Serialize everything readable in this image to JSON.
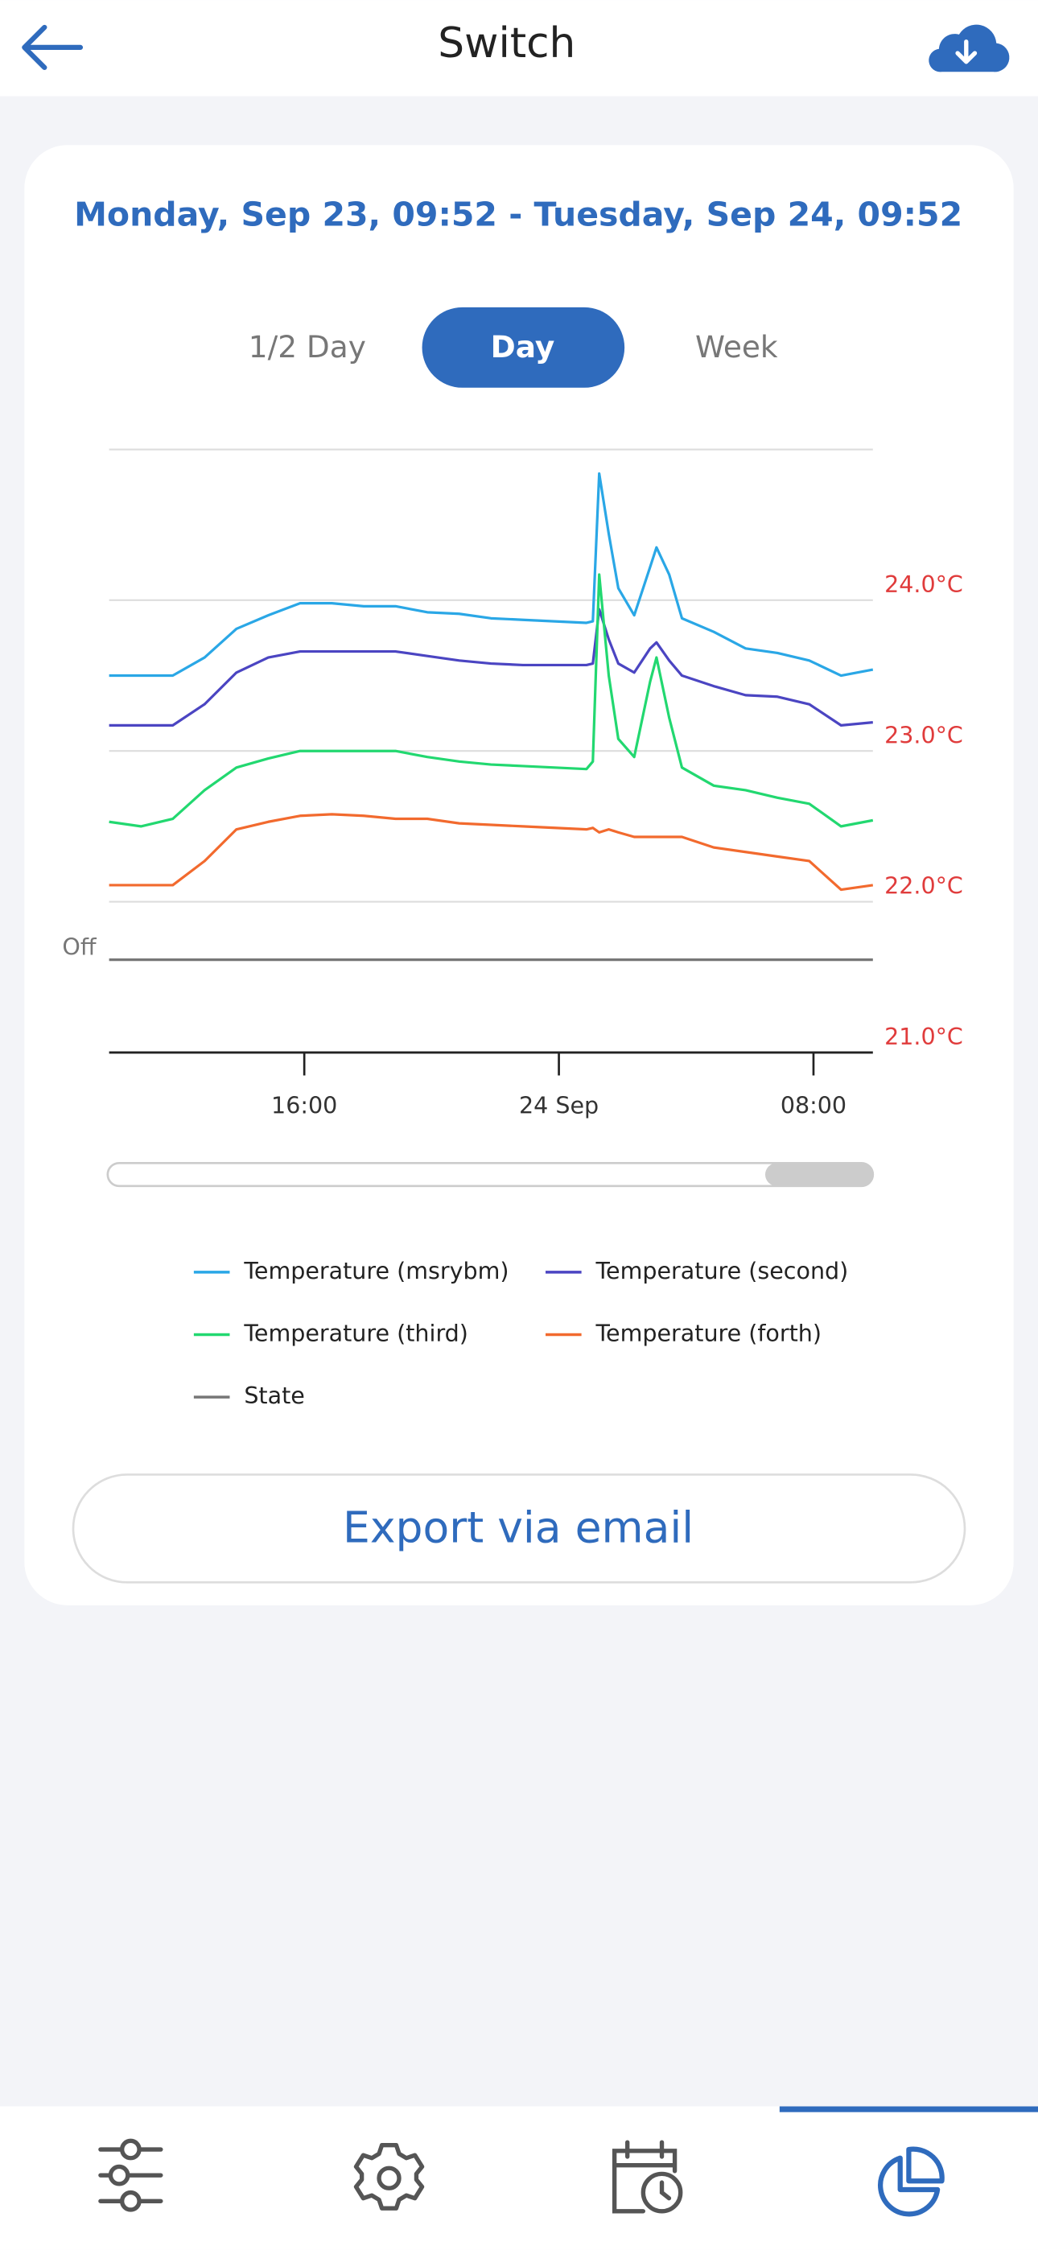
{
  "header": {
    "title": "Switch"
  },
  "range": "Monday, Sep 23, 09:52 - Tuesday, Sep 24, 09:52",
  "tabs": [
    "1/2 Day",
    "Day",
    "Week"
  ],
  "selected_tab": 1,
  "chart_data": {
    "type": "line",
    "x": [
      0,
      1,
      2,
      3,
      4,
      5,
      6,
      7,
      8,
      9,
      10,
      11,
      12,
      13,
      14,
      15,
      15.2,
      15.4,
      15.7,
      16,
      16.5,
      17,
      17.2,
      17.6,
      18,
      19,
      20,
      21,
      22,
      23,
      24
    ],
    "xlim": [
      0,
      24
    ],
    "xticks": [
      {
        "value": 6.133,
        "label": "16:00"
      },
      {
        "value": 14.133,
        "label": "24 Sep"
      },
      {
        "value": 22.133,
        "label": "08:00"
      }
    ],
    "ylim": [
      21,
      25
    ],
    "yticks": [
      {
        "value": 21,
        "label": "21.0°C"
      },
      {
        "value": 22,
        "label": "22.0°C"
      },
      {
        "value": 23,
        "label": "23.0°C"
      },
      {
        "value": 24,
        "label": "24.0°C"
      }
    ],
    "y2lim": [
      -1,
      5.5
    ],
    "y2ticks": [
      {
        "value": 0,
        "label": "Off"
      }
    ],
    "grid": true,
    "series": [
      {
        "name": "Temperature (msrybm)",
        "color": "#2aa7e6",
        "values": [
          23.5,
          23.5,
          23.5,
          23.62,
          23.81,
          23.9,
          23.98,
          23.98,
          23.96,
          23.96,
          23.92,
          23.91,
          23.88,
          23.87,
          23.86,
          23.85,
          23.86,
          24.84,
          24.44,
          24.08,
          23.9,
          24.22,
          24.35,
          24.17,
          23.88,
          23.79,
          23.68,
          23.65,
          23.6,
          23.5,
          23.54
        ]
      },
      {
        "name": "Temperature (second)",
        "color": "#4b45c2",
        "values": [
          23.17,
          23.17,
          23.17,
          23.31,
          23.52,
          23.62,
          23.66,
          23.66,
          23.66,
          23.66,
          23.63,
          23.6,
          23.58,
          23.57,
          23.57,
          23.57,
          23.58,
          23.94,
          23.74,
          23.58,
          23.52,
          23.68,
          23.72,
          23.6,
          23.5,
          23.43,
          23.37,
          23.36,
          23.31,
          23.17,
          23.19
        ]
      },
      {
        "name": "Temperature (third)",
        "color": "#22d870",
        "values": [
          22.53,
          22.5,
          22.55,
          22.74,
          22.89,
          22.95,
          23.0,
          23.0,
          23.0,
          23.0,
          22.96,
          22.93,
          22.91,
          22.9,
          22.89,
          22.88,
          22.93,
          24.17,
          23.5,
          23.08,
          22.96,
          23.46,
          23.62,
          23.22,
          22.89,
          22.77,
          22.74,
          22.69,
          22.65,
          22.5,
          22.54
        ]
      },
      {
        "name": "Temperature (forth)",
        "color": "#f26a2e",
        "values": [
          22.11,
          22.11,
          22.11,
          22.27,
          22.48,
          22.53,
          22.57,
          22.58,
          22.57,
          22.55,
          22.55,
          22.52,
          22.51,
          22.5,
          22.49,
          22.48,
          22.49,
          22.46,
          22.48,
          22.46,
          22.43,
          22.43,
          22.43,
          22.43,
          22.43,
          22.36,
          22.33,
          22.3,
          22.27,
          22.08,
          22.11
        ]
      },
      {
        "name": "State",
        "color": "#777777",
        "axis": "y2",
        "values": [
          0,
          0,
          0,
          0,
          0,
          0,
          0,
          0,
          0,
          0,
          0,
          0,
          0,
          0,
          0,
          0,
          0,
          0,
          0,
          0,
          0,
          0,
          0,
          0,
          0,
          0,
          0,
          0,
          0,
          0,
          0
        ]
      }
    ]
  },
  "export_button": "Export via email"
}
